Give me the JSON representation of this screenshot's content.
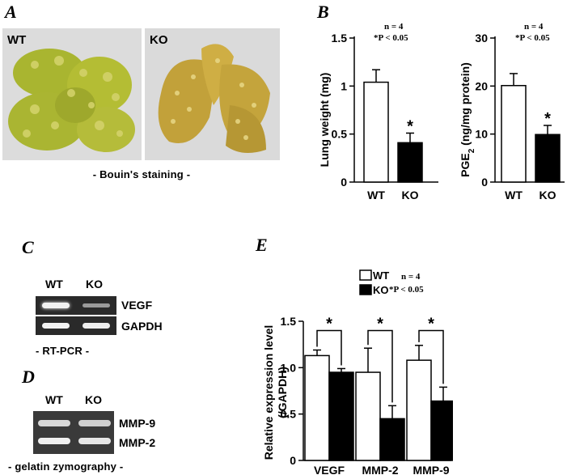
{
  "panels": {
    "A": {
      "letter": "A",
      "photos": [
        {
          "label": "WT"
        },
        {
          "label": "KO"
        }
      ],
      "caption": "- Bouin's staining -"
    },
    "B": {
      "letter": "B",
      "charts": [
        {
          "ylabel": "Lung  weight (mg)",
          "stats_n": "n = 4",
          "stats_p": "*P < 0.05",
          "ylim": [
            0,
            1.5
          ],
          "yticks": [
            "0",
            "0.5",
            "1",
            "1.5"
          ],
          "categories": [
            "WT",
            "KO"
          ],
          "values": [
            1.04,
            0.41
          ],
          "errors": [
            0.13,
            0.1
          ],
          "colors": [
            "#ffffff",
            "#000000"
          ],
          "sig": "*"
        },
        {
          "ylabel": "PGE",
          "ylabel_sub": "2",
          "ylabel_rest": " (ng/mg protein)",
          "stats_n": "n = 4",
          "stats_p": "*P < 0.05",
          "ylim": [
            0,
            30
          ],
          "yticks": [
            "0",
            "10",
            "20",
            "30"
          ],
          "categories": [
            "WT",
            "KO"
          ],
          "values": [
            20.1,
            9.9
          ],
          "errors": [
            2.5,
            1.9
          ],
          "colors": [
            "#ffffff",
            "#000000"
          ],
          "sig": "*"
        }
      ]
    },
    "C": {
      "letter": "C",
      "lanes": [
        "WT",
        "KO"
      ],
      "bands": [
        "VEGF",
        "GAPDH"
      ],
      "caption": "- RT-PCR -"
    },
    "D": {
      "letter": "D",
      "lanes": [
        "WT",
        "KO"
      ],
      "bands": [
        "MMP-9",
        "MMP-2"
      ],
      "caption": "- gelatin zymography -"
    },
    "E": {
      "letter": "E",
      "legend": [
        {
          "label": "WT",
          "color": "#ffffff"
        },
        {
          "label": "KO",
          "color": "#000000"
        }
      ],
      "stats_n": "n = 4",
      "stats_p": "*P < 0.05",
      "ylabel_1": "Relative expression level",
      "ylabel_2": "(/GAPDH)",
      "yticks": [
        "0",
        "0.5",
        "1.0",
        "1.5"
      ],
      "sig": "*"
    }
  },
  "chart_data": [
    {
      "type": "bar",
      "title": "",
      "categories": [
        "WT",
        "KO"
      ],
      "values": [
        1.04,
        0.41
      ],
      "errors": [
        0.13,
        0.1
      ],
      "ylabel": "Lung  weight (mg)",
      "ylim": [
        0,
        1.5
      ],
      "annotations": [
        "n = 4",
        "*P < 0.05",
        "*"
      ]
    },
    {
      "type": "bar",
      "title": "",
      "categories": [
        "WT",
        "KO"
      ],
      "values": [
        20.1,
        9.9
      ],
      "errors": [
        2.5,
        1.9
      ],
      "ylabel": "PGE2 (ng/mg protein)",
      "ylim": [
        0,
        30
      ],
      "annotations": [
        "n = 4",
        "*P < 0.05",
        "*"
      ]
    },
    {
      "type": "bar",
      "title": "",
      "categories": [
        "VEGF",
        "MMP-2",
        "MMP-9"
      ],
      "series": [
        {
          "name": "WT",
          "values": [
            1.13,
            0.95,
            1.08
          ],
          "errors": [
            0.06,
            0.26,
            0.16
          ],
          "color": "#ffffff"
        },
        {
          "name": "KO",
          "values": [
            0.95,
            0.45,
            0.64
          ],
          "errors": [
            0.04,
            0.14,
            0.15
          ],
          "color": "#000000"
        }
      ],
      "ylabel": "Relative expression level (/GAPDH)",
      "ylim": [
        0,
        1.5
      ],
      "annotations": [
        "n = 4",
        "*P < 0.05",
        "*",
        "*",
        "*"
      ]
    }
  ]
}
